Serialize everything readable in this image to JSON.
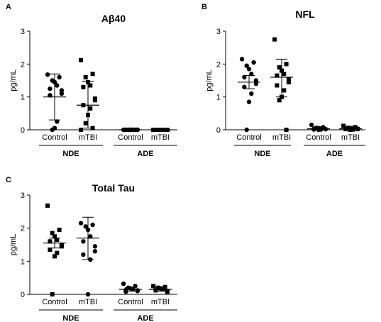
{
  "chart_data": [
    {
      "panel": "A",
      "type": "scatter",
      "title": "Aβ40",
      "ylabel": "pg/mL",
      "ylim": [
        0,
        3
      ],
      "yticks": [
        "0",
        "1",
        "2",
        "3"
      ],
      "categories": [
        "Control",
        "mTBI",
        "Control",
        "mTBI"
      ],
      "groups": [
        {
          "label": "NDE"
        },
        {
          "label": "ADE"
        }
      ],
      "series": [
        {
          "category": "Control",
          "group": "NDE",
          "marker": "circle",
          "values": [
            1.68,
            1.6,
            1.5,
            1.45,
            1.35,
            1.25,
            1.2,
            1.1,
            1.05,
            0.25,
            0.05,
            0.0
          ],
          "mean": 1.0,
          "err_low": 0.3,
          "err_high": 1.7
        },
        {
          "category": "mTBI",
          "group": "NDE",
          "marker": "square",
          "values": [
            2.12,
            1.7,
            1.6,
            1.45,
            1.35,
            1.3,
            0.95,
            0.9,
            0.75,
            0.65,
            0.45,
            0.2,
            0.05,
            0.0
          ],
          "mean": 0.75,
          "err_low": 0.05,
          "err_high": 1.48
        },
        {
          "category": "Control",
          "group": "ADE",
          "marker": "circle",
          "values": [
            0,
            0,
            0,
            0,
            0,
            0,
            0,
            0,
            0,
            0,
            0,
            0
          ],
          "mean": 0.0,
          "err_low": 0.0,
          "err_high": 0.0
        },
        {
          "category": "mTBI",
          "group": "ADE",
          "marker": "square",
          "values": [
            0,
            0,
            0,
            0,
            0,
            0,
            0,
            0,
            0,
            0,
            0,
            0
          ],
          "mean": 0.0,
          "err_low": 0.0,
          "err_high": 0.0
        }
      ]
    },
    {
      "panel": "B",
      "type": "scatter",
      "title": "NFL",
      "ylabel": "pg/mL",
      "ylim": [
        0,
        3
      ],
      "yticks": [
        "0",
        "1",
        "2",
        "3"
      ],
      "categories": [
        "Control",
        "mTBI",
        "Control",
        "mTBI"
      ],
      "groups": [
        {
          "label": "NDE"
        },
        {
          "label": "ADE"
        }
      ],
      "series": [
        {
          "category": "Control",
          "group": "NDE",
          "marker": "circle",
          "values": [
            2.15,
            2.05,
            1.95,
            1.85,
            1.7,
            1.6,
            1.5,
            1.4,
            1.3,
            1.1,
            0.85,
            0.0
          ],
          "mean": 1.45,
          "err_low": 1.25,
          "err_high": 1.65
        },
        {
          "category": "mTBI",
          "group": "NDE",
          "marker": "square",
          "values": [
            2.75,
            2.0,
            1.9,
            1.8,
            1.7,
            1.65,
            1.55,
            1.45,
            1.35,
            1.2,
            1.0,
            0.9,
            0.0
          ],
          "mean": 1.6,
          "err_low": 1.0,
          "err_high": 2.15
        },
        {
          "category": "Control",
          "group": "ADE",
          "marker": "circle",
          "values": [
            0.15,
            0.08,
            0.06,
            0.05,
            0.04,
            0.03,
            0.02,
            0.02,
            0.01,
            0.01,
            0.0
          ],
          "mean": 0.03,
          "err_low": 0.02,
          "err_high": 0.05
        },
        {
          "category": "mTBI",
          "group": "ADE",
          "marker": "square",
          "values": [
            0.12,
            0.08,
            0.06,
            0.05,
            0.04,
            0.03,
            0.03,
            0.02,
            0.02,
            0.01,
            0.0
          ],
          "mean": 0.03,
          "err_low": 0.02,
          "err_high": 0.05
        }
      ]
    },
    {
      "panel": "C",
      "type": "scatter",
      "title": "Total Tau",
      "ylabel": "pg/mL",
      "ylim": [
        0,
        3
      ],
      "yticks": [
        "0",
        "1",
        "2",
        "3"
      ],
      "categories": [
        "Control",
        "mTBI",
        "Control",
        "mTBI"
      ],
      "groups": [
        {
          "label": "NDE"
        },
        {
          "label": "ADE"
        }
      ],
      "series": [
        {
          "category": "Control",
          "group": "NDE",
          "marker": "square",
          "values": [
            2.68,
            1.95,
            1.85,
            1.75,
            1.65,
            1.6,
            1.5,
            1.45,
            1.35,
            1.25,
            1.15,
            0.0
          ],
          "mean": 1.55,
          "err_low": 1.4,
          "err_high": 1.7
        },
        {
          "category": "mTBI",
          "group": "NDE",
          "marker": "circle",
          "values": [
            2.15,
            2.1,
            2.05,
            1.95,
            1.75,
            1.6,
            1.45,
            1.3,
            1.2,
            1.05,
            0.0
          ],
          "mean": 1.7,
          "err_low": 1.05,
          "err_high": 2.33
        },
        {
          "category": "Control",
          "group": "ADE",
          "marker": "circle",
          "values": [
            0.32,
            0.25,
            0.2,
            0.18,
            0.15,
            0.13,
            0.12,
            0.1,
            0.08
          ],
          "mean": 0.15,
          "err_low": 0.1,
          "err_high": 0.2
        },
        {
          "category": "mTBI",
          "group": "ADE",
          "marker": "square",
          "values": [
            0.25,
            0.22,
            0.2,
            0.18,
            0.15,
            0.12,
            0.1,
            0.08
          ],
          "mean": 0.15,
          "err_low": 0.1,
          "err_high": 0.2
        }
      ]
    }
  ]
}
